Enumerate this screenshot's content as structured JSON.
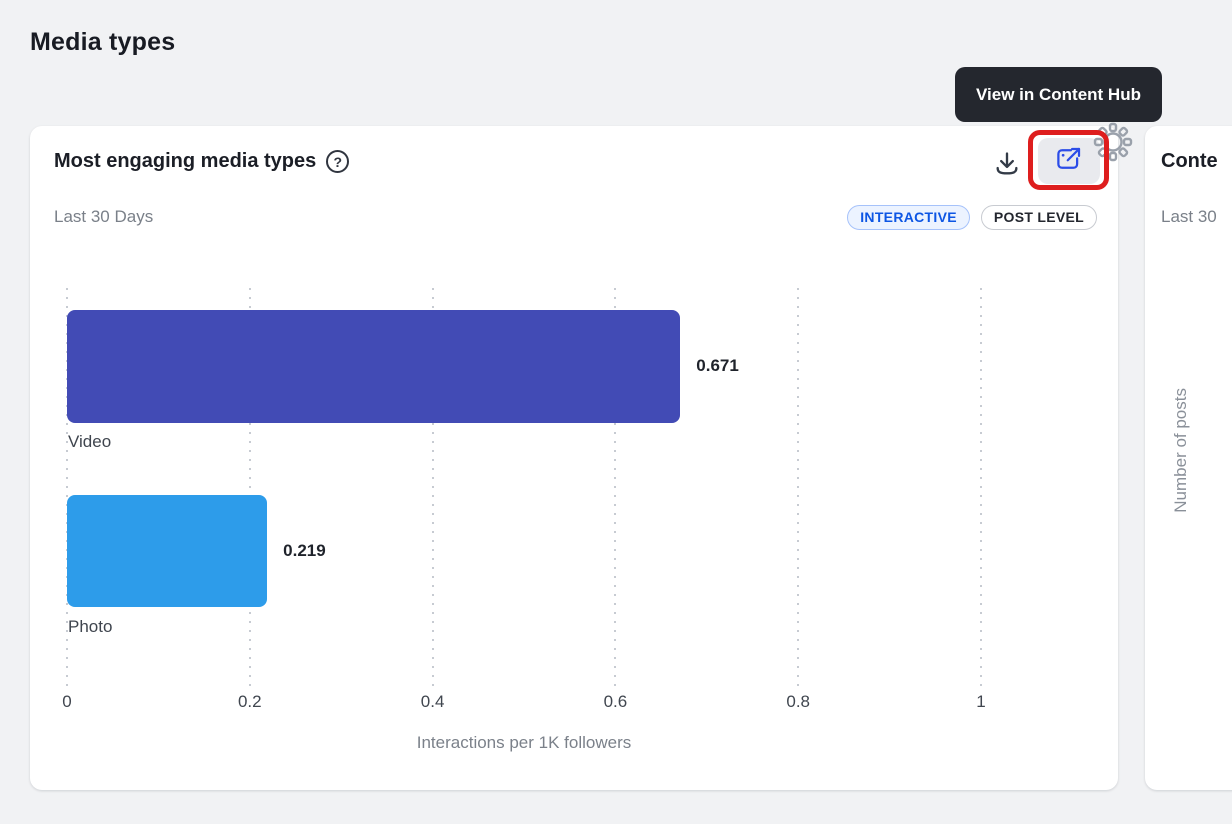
{
  "page": {
    "title": "Media types"
  },
  "card": {
    "title": "Most engaging media types",
    "subtitle": "Last 30 Days",
    "help_glyph": "?",
    "badges": {
      "interactive": "INTERACTIVE",
      "post_level": "POST LEVEL"
    },
    "tooltip": "View in Content Hub"
  },
  "chart_data": {
    "type": "bar",
    "orientation": "horizontal",
    "title": "Most engaging media types",
    "categories": [
      "Video",
      "Photo"
    ],
    "values": [
      0.671,
      0.219
    ],
    "value_labels": [
      "0.671",
      "0.219"
    ],
    "colors": [
      "#424bb5",
      "#2d9cea"
    ],
    "xlabel": "Interactions per 1K followers",
    "ylabel": "",
    "xlim": [
      0,
      1
    ],
    "xticks": [
      0,
      0.2,
      0.4,
      0.6,
      0.8,
      1
    ],
    "xtick_labels": [
      "0",
      "0.2",
      "0.4",
      "0.6",
      "0.8",
      "1"
    ],
    "grid": "vertical-dotted",
    "legend": "none"
  },
  "next_card": {
    "title": "Conte",
    "subtitle": "Last 30",
    "ylabel": "Number of posts"
  },
  "colors": {
    "annotation_red": "#de1e1e",
    "tooltip_bg": "#24272e",
    "icon_blue": "#2b4ce8",
    "page_bg": "#f1f2f4"
  }
}
